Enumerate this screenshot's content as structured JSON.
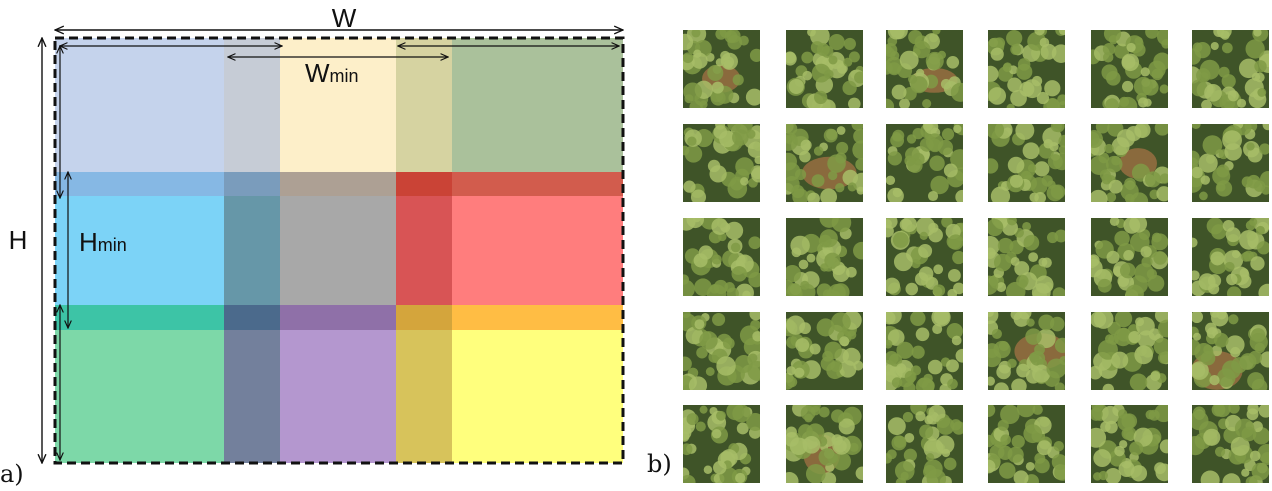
{
  "panel_a": {
    "label": "a)",
    "width_label": "W",
    "height_label": "H",
    "wmin_label_main": "W",
    "wmin_label_sub": "min",
    "hmin_label_main": "H",
    "hmin_label_sub": "min",
    "tile_grid_colors": {
      "columns_rows": [
        [
          "#c5d3ec",
          "#c6ccd6",
          "#fdefc9",
          "#d6d3a1",
          "#aac19b"
        ],
        [
          "#86b8e4",
          "#7a9cbc",
          "#ada094",
          "#ca4336",
          "#d25c4d"
        ],
        [
          "#7cd3f7",
          "#6697a8",
          "#a8a8a8",
          "#d85455",
          "#ff7d7d"
        ],
        [
          "#3dc4a6",
          "#4b6a8c",
          "#8f70a8",
          "#d4a53c",
          "#ffbd44"
        ],
        [
          "#7dd8a8",
          "#73809c",
          "#b497cf",
          "#d7c35b",
          "#ffff7d"
        ]
      ]
    },
    "border_color": "#111111"
  },
  "panel_b": {
    "label": "b)",
    "rows": 5,
    "columns": 6,
    "tile_description_colors": {
      "canopy": "#7f9a45",
      "canopy_light": "#a7bd67",
      "shadow": "#3f5428",
      "ground": "#8a6a3d"
    },
    "clearing_tiles": [
      0,
      2,
      7,
      10,
      21,
      23,
      25
    ]
  }
}
